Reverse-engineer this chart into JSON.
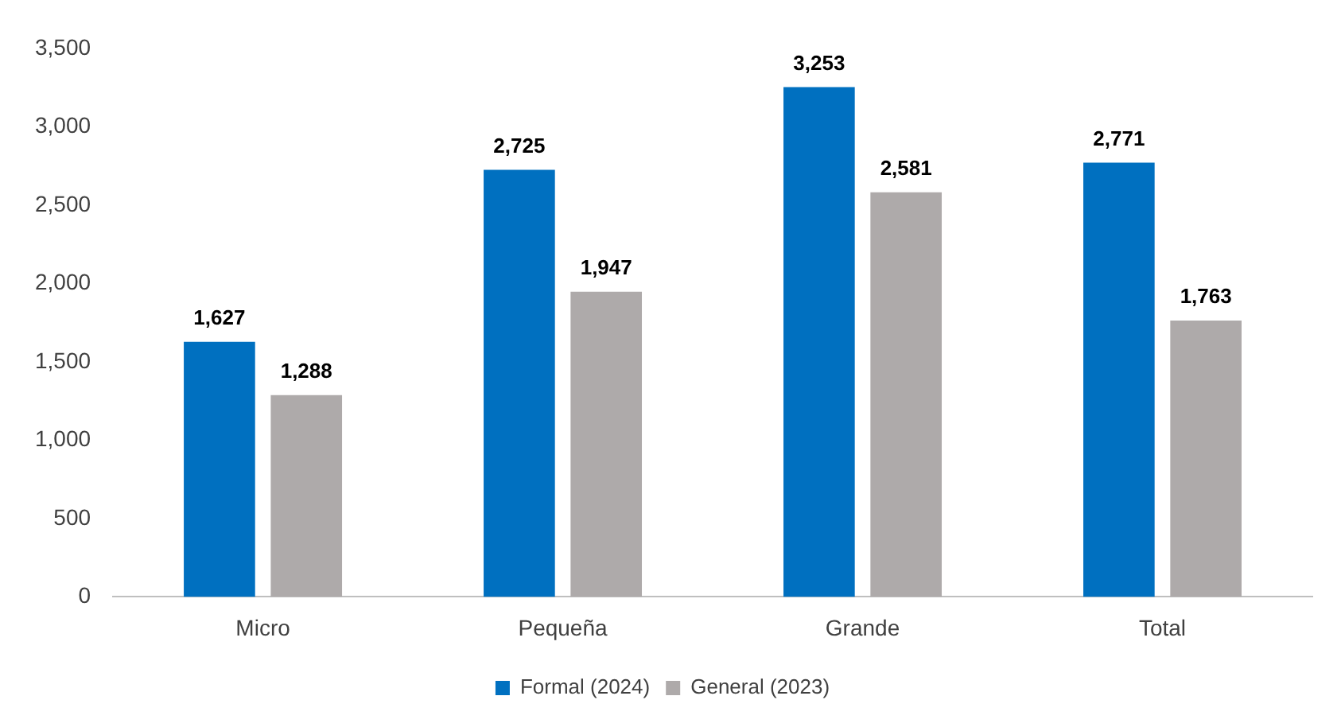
{
  "chart_data": {
    "type": "bar",
    "categories": [
      "Micro",
      "Pequeña",
      "Grande",
      "Total"
    ],
    "series": [
      {
        "name": "Formal (2024)",
        "color": "#0070c0",
        "values": [
          1627,
          2725,
          3253,
          2771
        ],
        "value_labels": [
          "1,627",
          "2,725",
          "3,253",
          "2,771"
        ]
      },
      {
        "name": "General (2023)",
        "color": "#aeaaaa",
        "values": [
          1288,
          1947,
          2581,
          1763
        ],
        "value_labels": [
          "1,288",
          "1,947",
          "2,581",
          "1,763"
        ]
      }
    ],
    "ylim": [
      0,
      3500
    ],
    "yticks": [
      {
        "value": 0,
        "label": "0"
      },
      {
        "value": 500,
        "label": "500"
      },
      {
        "value": 1000,
        "label": "1,000"
      },
      {
        "value": 1500,
        "label": "1,500"
      },
      {
        "value": 2000,
        "label": "2,000"
      },
      {
        "value": 2500,
        "label": "2,500"
      },
      {
        "value": 3000,
        "label": "3,000"
      },
      {
        "value": 3500,
        "label": "3,500"
      }
    ],
    "grid": false,
    "legend": "bottom"
  }
}
